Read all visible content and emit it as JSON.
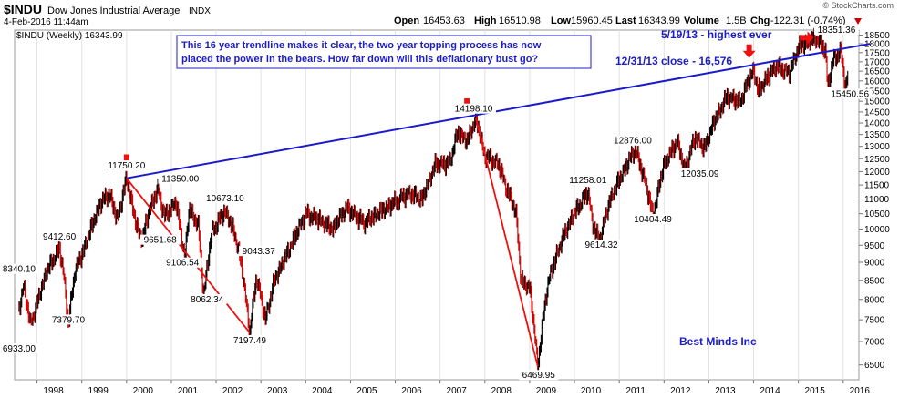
{
  "header": {
    "symbol": "$INDU",
    "name": "Dow Jones Industrial Average",
    "exchange": "INDX",
    "datetime": "4-Feb-2016 11:44am",
    "open_label": "Open",
    "open": "16453.63",
    "high_label": "High",
    "high": "16510.98",
    "low_label": "Low",
    "low": "15960.45",
    "last_label": "Last",
    "last": "16343.99",
    "volume_label": "Volume",
    "volume": "1.5B",
    "chg_label": "Chg",
    "chg": "-122.31 (-0.74%)",
    "chg_icon": "down-triangle-icon",
    "watermark": "© StockCharts.com",
    "legend": "$INDU (Weekly) 16343.99"
  },
  "annotations": {
    "box_text_line1": "This 16 year trendline makes it clear, the two year topping process has now",
    "box_text_line2": "placed the power in the bears. How far down will this deflationary bust go?",
    "highest_ever": "5/19/13 - highest ever",
    "close_1231": "12/31/13 close - 16,576",
    "credit": "Best Minds Inc"
  },
  "colors": {
    "price_line": "#000000",
    "down_bar": "#cc0000",
    "trendline": "#1a1acc",
    "decline_line": "#ee1111",
    "arrow": "#ee1111",
    "annotation_text": "#1c1cc8",
    "grid": "#e2e2e2"
  },
  "chart_data": {
    "type": "line",
    "title": "$INDU Dow Jones Industrial Average INDX",
    "series": [
      {
        "name": "$INDU (Weekly) 16343.99",
        "points": [
          [
            1997.6,
            7800
          ],
          [
            1997.7,
            8340.1
          ],
          [
            1997.85,
            7400
          ],
          [
            1997.95,
            7700
          ],
          [
            1998.2,
            8700
          ],
          [
            1998.5,
            9412.6
          ],
          [
            1998.6,
            8600
          ],
          [
            1998.7,
            7379.7
          ],
          [
            1998.85,
            8800
          ],
          [
            1999.0,
            9200
          ],
          [
            1999.2,
            10000
          ],
          [
            1999.4,
            10800
          ],
          [
            1999.6,
            11200
          ],
          [
            1999.8,
            10300
          ],
          [
            2000.0,
            11750.2
          ],
          [
            2000.2,
            10200
          ],
          [
            2000.35,
            9651.68
          ],
          [
            2000.5,
            10600
          ],
          [
            2000.7,
            11350
          ],
          [
            2000.85,
            10400
          ],
          [
            2001.1,
            10900
          ],
          [
            2001.3,
            9106.54
          ],
          [
            2001.4,
            10673.1
          ],
          [
            2001.6,
            10100
          ],
          [
            2001.72,
            8062.34
          ],
          [
            2001.9,
            9900
          ],
          [
            2002.2,
            10600
          ],
          [
            2002.4,
            9900
          ],
          [
            2002.55,
            9043.37
          ],
          [
            2002.75,
            7197.49
          ],
          [
            2002.9,
            8600
          ],
          [
            2003.1,
            7500
          ],
          [
            2003.3,
            8500
          ],
          [
            2003.6,
            9300
          ],
          [
            2004.0,
            10500
          ],
          [
            2004.3,
            10300
          ],
          [
            2004.6,
            10000
          ],
          [
            2004.9,
            10700
          ],
          [
            2005.3,
            10200
          ],
          [
            2005.6,
            10500
          ],
          [
            2005.9,
            10800
          ],
          [
            2006.3,
            11200
          ],
          [
            2006.6,
            11000
          ],
          [
            2006.9,
            12300
          ],
          [
            2007.2,
            12300
          ],
          [
            2007.4,
            13600
          ],
          [
            2007.6,
            13200
          ],
          [
            2007.8,
            14198.1
          ],
          [
            2008.0,
            12600
          ],
          [
            2008.3,
            12300
          ],
          [
            2008.5,
            11300
          ],
          [
            2008.7,
            10500
          ],
          [
            2008.8,
            8500
          ],
          [
            2009.0,
            8300
          ],
          [
            2009.18,
            6469.95
          ],
          [
            2009.4,
            8400
          ],
          [
            2009.7,
            9600
          ],
          [
            2009.95,
            10400
          ],
          [
            2010.3,
            11258.01
          ],
          [
            2010.4,
            10200
          ],
          [
            2010.55,
            9614.32
          ],
          [
            2010.8,
            11000
          ],
          [
            2011.0,
            11700
          ],
          [
            2011.35,
            12876
          ],
          [
            2011.6,
            11500
          ],
          [
            2011.75,
            10404.49
          ],
          [
            2012.0,
            12300
          ],
          [
            2012.3,
            13200
          ],
          [
            2012.45,
            12035.09
          ],
          [
            2012.7,
            13400
          ],
          [
            2012.9,
            12900
          ],
          [
            2013.1,
            14000
          ],
          [
            2013.4,
            15200
          ],
          [
            2013.7,
            15000
          ],
          [
            2013.99,
            16576
          ],
          [
            2014.1,
            15500
          ],
          [
            2014.5,
            16800
          ],
          [
            2014.8,
            16400
          ],
          [
            2015.0,
            17800
          ],
          [
            2015.38,
            18351.36
          ],
          [
            2015.6,
            17600
          ],
          [
            2015.65,
            15800
          ],
          [
            2015.8,
            17200
          ],
          [
            2015.95,
            17600
          ],
          [
            2016.05,
            15450.56
          ],
          [
            2016.1,
            16343.99
          ]
        ]
      }
    ],
    "trendline": {
      "x": [
        2000.0,
        2016.6
      ],
      "y": [
        11750.2,
        18000
      ]
    },
    "decline_lines": [
      {
        "x": [
          2000.0,
          2002.75
        ],
        "y": [
          11750.2,
          7197.49
        ]
      },
      {
        "x": [
          2007.8,
          2009.18
        ],
        "y": [
          14198.1,
          6469.95
        ]
      }
    ],
    "arrows": [
      {
        "x": 2000.0,
        "y": 12350
      },
      {
        "x": 2007.6,
        "y": 14750
      },
      {
        "x": 2013.9,
        "y": 17500
      },
      {
        "x": 2015.2,
        "y": 18350
      }
    ],
    "price_labels": [
      {
        "text": "8340.10",
        "x": 1997.6,
        "y": 8750
      },
      {
        "text": "6933.00",
        "x": 1997.6,
        "y": 6800
      },
      {
        "text": "9412.60",
        "x": 1998.5,
        "y": 9700
      },
      {
        "text": "7379.70",
        "x": 1998.7,
        "y": 7450
      },
      {
        "text": "11750.20",
        "x": 2000.0,
        "y": 12150
      },
      {
        "text": "11350.00",
        "x": 2001.2,
        "y": 11650
      },
      {
        "text": "9651.68",
        "x": 2000.75,
        "y": 9600
      },
      {
        "text": "9106.54",
        "x": 2001.25,
        "y": 8930
      },
      {
        "text": "10673.10",
        "x": 2002.2,
        "y": 10950
      },
      {
        "text": "8062.34",
        "x": 2001.8,
        "y": 7950
      },
      {
        "text": "9043.37",
        "x": 2002.95,
        "y": 9260
      },
      {
        "text": "7197.49",
        "x": 2002.75,
        "y": 6980
      },
      {
        "text": "14198.10",
        "x": 2007.75,
        "y": 14550
      },
      {
        "text": "6469.95",
        "x": 2009.2,
        "y": 6250
      },
      {
        "text": "11258.01",
        "x": 2010.3,
        "y": 11600
      },
      {
        "text": "9614.32",
        "x": 2010.6,
        "y": 9450
      },
      {
        "text": "12876.00",
        "x": 2011.3,
        "y": 13150
      },
      {
        "text": "10404.49",
        "x": 2011.75,
        "y": 10250
      },
      {
        "text": "12035.09",
        "x": 2012.8,
        "y": 11850
      },
      {
        "text": "18351.36",
        "x": 2015.85,
        "y": 18700
      },
      {
        "text": "15450.56",
        "x": 2016.15,
        "y": 15250
      }
    ],
    "x_ticks": [
      "1998",
      "1999",
      "2000",
      "2001",
      "2002",
      "2003",
      "2004",
      "2005",
      "2006",
      "2007",
      "2008",
      "2009",
      "2010",
      "2011",
      "2012",
      "2013",
      "2014",
      "2015",
      "2016"
    ],
    "y_ticks": [
      6500,
      7000,
      7500,
      8000,
      8500,
      9000,
      9500,
      10000,
      10500,
      11000,
      11500,
      12000,
      12500,
      13000,
      13500,
      14000,
      14500,
      15000,
      15500,
      16000,
      16500,
      17000,
      17500,
      18000,
      18500
    ],
    "y_scale": "log",
    "xlim": [
      1997.5,
      2016.35
    ],
    "ylim": [
      6200,
      18800
    ],
    "grid": false,
    "xlabel": "",
    "ylabel": ""
  }
}
